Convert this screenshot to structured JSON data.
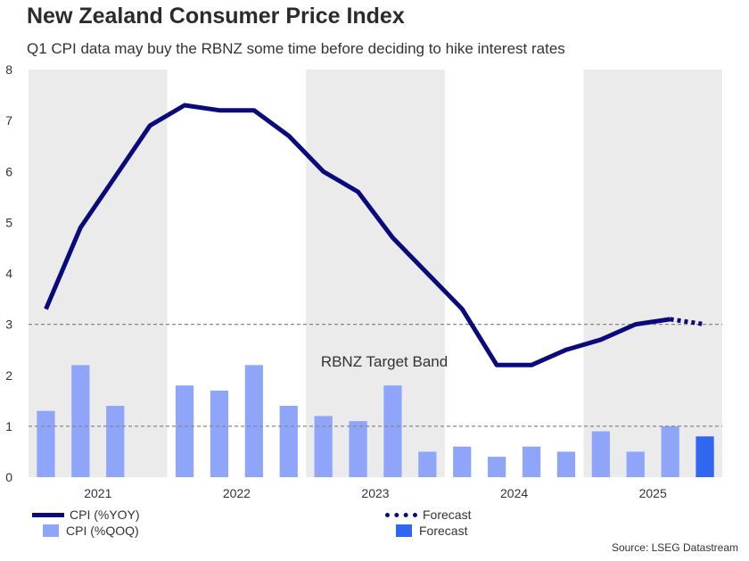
{
  "title": "New Zealand Consumer Price Index",
  "subtitle": "Q1 CPI data may buy the RBNZ some time before deciding to hike interest rates",
  "source": "Source: LSEG Datastream",
  "colors": {
    "line": "#0a0a7a",
    "bar": "#8ea5fa",
    "bar_forecast": "#2f67f2",
    "band_shade": "#ebebeb",
    "reference_line": "#888888"
  },
  "legend": {
    "cpi_yoy": "CPI (%YOY)",
    "cpi_qoq": "CPI (%QOQ)",
    "forecast_line": "Forecast",
    "forecast_bar": "Forecast"
  },
  "chart_data": {
    "type": "bar",
    "title": "New Zealand Consumer Price Index",
    "subtitle": "Q1 CPI data may buy the RBNZ some time before deciding to hike interest rates",
    "ylim": [
      0,
      8
    ],
    "yticks": [
      "0",
      "1",
      "2",
      "3",
      "4",
      "5",
      "6",
      "7",
      "8"
    ],
    "year_labels": [
      "2021",
      "2022",
      "2023",
      "2024",
      "2025"
    ],
    "year_shading": [
      "shaded",
      "plain",
      "shaded",
      "plain",
      "shaded"
    ],
    "categories": [
      "2021 Q1",
      "2021 Q2",
      "2021 Q3",
      "2021 Q4",
      "2022 Q1",
      "2022 Q2",
      "2022 Q3",
      "2022 Q4",
      "2023 Q1",
      "2023 Q2",
      "2023 Q3",
      "2023 Q4",
      "2024 Q1",
      "2024 Q2",
      "2024 Q3",
      "2024 Q4",
      "2025 Q1",
      "2025 Q2",
      "2025 Q3",
      "2025 Q4"
    ],
    "series": [
      {
        "name": "CPI (%YOY)",
        "kind": "line",
        "values": [
          3.3,
          4.9,
          5.9,
          6.9,
          7.3,
          7.2,
          7.2,
          6.7,
          6.0,
          5.6,
          4.7,
          4.0,
          3.3,
          2.2,
          2.2,
          2.5,
          2.7,
          3.0,
          3.1,
          null
        ]
      },
      {
        "name": "Forecast",
        "kind": "line-dotted",
        "values": [
          null,
          null,
          null,
          null,
          null,
          null,
          null,
          null,
          null,
          null,
          null,
          null,
          null,
          null,
          null,
          null,
          null,
          null,
          3.1,
          3.0
        ]
      },
      {
        "name": "CPI (%QOQ)",
        "kind": "bar",
        "values": [
          1.3,
          2.2,
          1.4,
          null,
          1.8,
          1.7,
          2.2,
          1.4,
          1.2,
          1.1,
          1.8,
          0.5,
          0.6,
          0.4,
          0.6,
          0.5,
          0.9,
          0.5,
          1.0,
          0.6
        ]
      },
      {
        "name": "Forecast",
        "kind": "bar-forecast",
        "values": [
          null,
          null,
          null,
          null,
          null,
          null,
          null,
          null,
          null,
          null,
          null,
          null,
          null,
          null,
          null,
          null,
          null,
          null,
          null,
          0.8
        ]
      }
    ],
    "reference_lines": [
      3,
      1
    ],
    "annotation": "RBNZ Target Band",
    "grid": false,
    "legend_position": "bottom"
  }
}
